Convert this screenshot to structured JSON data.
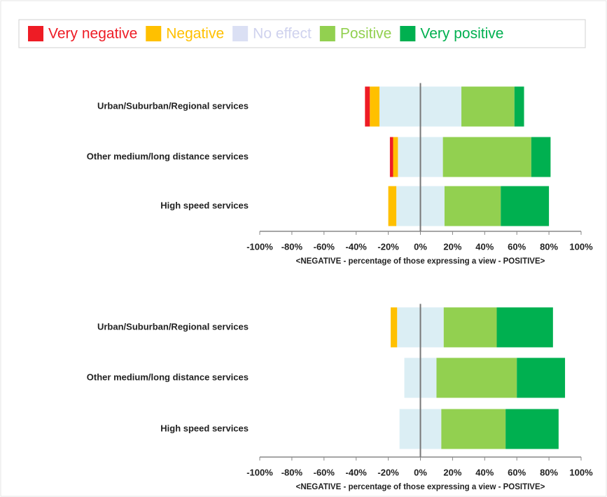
{
  "legend": {
    "position": "top",
    "entries": [
      {
        "name": "Very negative",
        "color": "#ee1c25",
        "text_color": "#ee1c25"
      },
      {
        "name": "Negative",
        "color": "#ffc000",
        "text_color": "#ffc000"
      },
      {
        "name": "No effect",
        "color": "#dbe0f4",
        "text_color": "#cfd2ee"
      },
      {
        "name": "Positive",
        "color": "#92d050",
        "text_color": "#92d050"
      },
      {
        "name": "Very positive",
        "color": "#00b050",
        "text_color": "#00b050"
      }
    ]
  },
  "bar_colors": [
    "#ee1c25",
    "#ffc000",
    "#dbeef4",
    "#92d050",
    "#00b050"
  ],
  "chart_data": [
    {
      "type": "diverging_bar",
      "categories": [
        "Urban/Suburban/Regional services",
        "Other medium/long distance services",
        "High speed services"
      ],
      "series": [
        {
          "values": [
            3,
            2,
            0
          ]
        },
        {
          "values": [
            6,
            3,
            5
          ]
        },
        {
          "values": [
            51,
            28,
            30
          ]
        },
        {
          "values": [
            33,
            55,
            35
          ]
        },
        {
          "values": [
            6,
            12,
            30
          ]
        }
      ],
      "xlim": [
        -100,
        100
      ],
      "xticks": [
        {
          "value": -100,
          "label": "-100%"
        },
        {
          "value": -80,
          "label": "-80%"
        },
        {
          "value": -60,
          "label": "-60%"
        },
        {
          "value": -40,
          "label": "-40%"
        },
        {
          "value": -20,
          "label": "-20%"
        },
        {
          "value": 0,
          "label": "0%"
        },
        {
          "value": 20,
          "label": "20%"
        },
        {
          "value": 40,
          "label": "40%"
        },
        {
          "value": 60,
          "label": "60%"
        },
        {
          "value": 80,
          "label": "80%"
        },
        {
          "value": 100,
          "label": "100%"
        }
      ],
      "xlabel": "<NEGATIVE  -  percentage of those expressing a view  -  POSITIVE>"
    },
    {
      "type": "diverging_bar",
      "categories": [
        "Urban/Suburban/Regional services",
        "Other medium/long distance services",
        "High speed services"
      ],
      "series": [
        {
          "values": [
            0,
            0,
            0
          ]
        },
        {
          "values": [
            4,
            0,
            0
          ]
        },
        {
          "values": [
            29,
            20,
            26
          ]
        },
        {
          "values": [
            33,
            50,
            40
          ]
        },
        {
          "values": [
            35,
            30,
            33
          ]
        }
      ],
      "xlim": [
        -100,
        100
      ],
      "xticks": [
        {
          "value": -100,
          "label": "-100%"
        },
        {
          "value": -80,
          "label": "-80%"
        },
        {
          "value": -60,
          "label": "-60%"
        },
        {
          "value": -40,
          "label": "-40%"
        },
        {
          "value": -20,
          "label": "-20%"
        },
        {
          "value": 0,
          "label": "0%"
        },
        {
          "value": 20,
          "label": "20%"
        },
        {
          "value": 40,
          "label": "40%"
        },
        {
          "value": 60,
          "label": "60%"
        },
        {
          "value": 80,
          "label": "80%"
        },
        {
          "value": 100,
          "label": "100%"
        }
      ],
      "xlabel": "<NEGATIVE  -  percentage of those expressing a view  -  POSITIVE>"
    }
  ]
}
